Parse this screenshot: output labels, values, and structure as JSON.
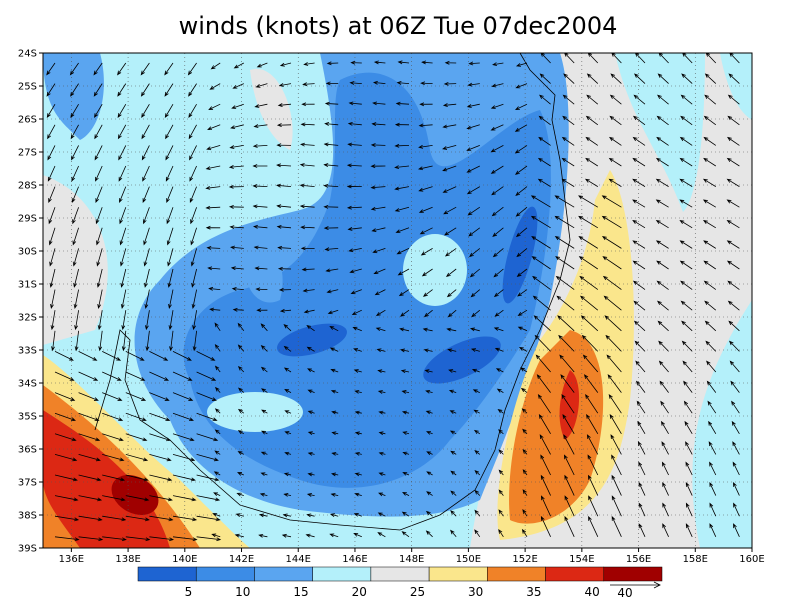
{
  "title": "winds (knots) at 06Z Tue 07dec2004",
  "map": {
    "xlim": [
      135,
      160
    ],
    "ylim": [
      -39,
      -24
    ],
    "lon_ticks": [
      {
        "value": 136,
        "label": "136E"
      },
      {
        "value": 138,
        "label": "138E"
      },
      {
        "value": 140,
        "label": "140E"
      },
      {
        "value": 142,
        "label": "142E"
      },
      {
        "value": 144,
        "label": "144E"
      },
      {
        "value": 146,
        "label": "146E"
      },
      {
        "value": 148,
        "label": "148E"
      },
      {
        "value": 150,
        "label": "150E"
      },
      {
        "value": 152,
        "label": "152E"
      },
      {
        "value": 154,
        "label": "154E"
      },
      {
        "value": 156,
        "label": "156E"
      },
      {
        "value": 158,
        "label": "158E"
      },
      {
        "value": 160,
        "label": "160E"
      }
    ],
    "lat_ticks": [
      {
        "value": -24,
        "label": "24S"
      },
      {
        "value": -25,
        "label": "25S"
      },
      {
        "value": -26,
        "label": "26S"
      },
      {
        "value": -27,
        "label": "27S"
      },
      {
        "value": -28,
        "label": "28S"
      },
      {
        "value": -29,
        "label": "29S"
      },
      {
        "value": -30,
        "label": "30S"
      },
      {
        "value": -31,
        "label": "31S"
      },
      {
        "value": -32,
        "label": "32S"
      },
      {
        "value": -33,
        "label": "33S"
      },
      {
        "value": -34,
        "label": "34S"
      },
      {
        "value": -35,
        "label": "35S"
      },
      {
        "value": -36,
        "label": "36S"
      },
      {
        "value": -37,
        "label": "37S"
      },
      {
        "value": -38,
        "label": "38S"
      },
      {
        "value": -39,
        "label": "39S"
      }
    ],
    "grid": true
  },
  "colorbar": {
    "levels": [
      5,
      10,
      15,
      20,
      25,
      30,
      35,
      40
    ],
    "colors": [
      "#1e64d2",
      "#3c8ce6",
      "#5aa5f0",
      "#b4f0fa",
      "#e6e6e6",
      "#fae68c",
      "#f08228",
      "#dc2814",
      "#a00000"
    ]
  },
  "reference_vector": 40
}
